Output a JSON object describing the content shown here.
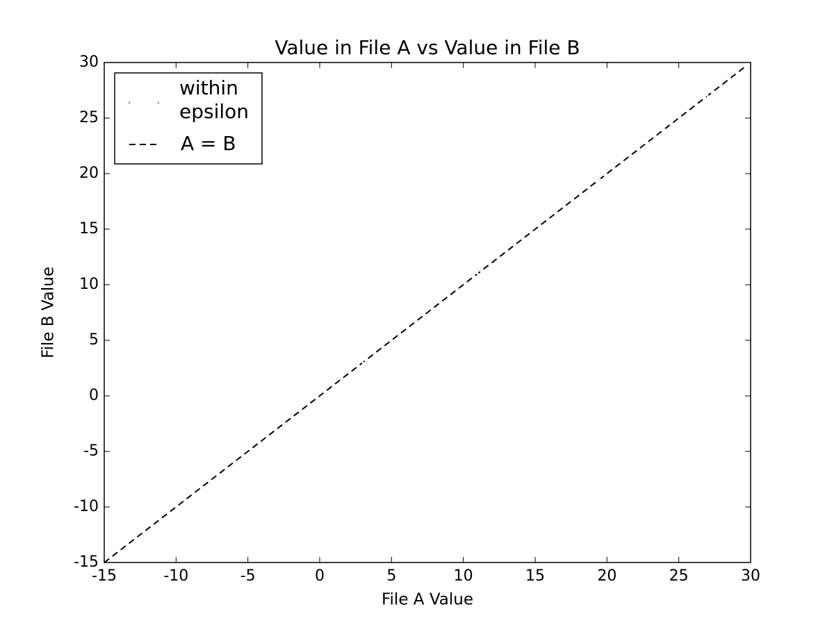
{
  "chart_data": {
    "type": "scatter",
    "title": "Value in File A vs Value in File B",
    "x_label": "File A Value",
    "y_label": "File B Value",
    "xlim": [
      -15,
      30
    ],
    "ylim": [
      -15,
      30
    ],
    "xticks": [
      -15,
      -10,
      -5,
      0,
      5,
      10,
      15,
      20,
      25,
      30
    ],
    "yticks": [
      -15,
      -10,
      -5,
      0,
      5,
      10,
      15,
      20,
      25,
      30
    ],
    "grid": false,
    "legend": "upper left",
    "series": [
      {
        "name": "within epsilon",
        "type": "scatter",
        "color": "#ffffff",
        "x": [
          -3,
          1,
          3,
          11,
          19.5,
          24,
          27
        ],
        "values": [
          -3,
          1,
          3,
          11,
          19.5,
          24,
          27
        ]
      },
      {
        "name": "A = B",
        "type": "line",
        "color": "#000000",
        "linestyle": "dashed",
        "x": [
          -15,
          29.6
        ],
        "values": [
          -15,
          29.6
        ]
      }
    ]
  }
}
